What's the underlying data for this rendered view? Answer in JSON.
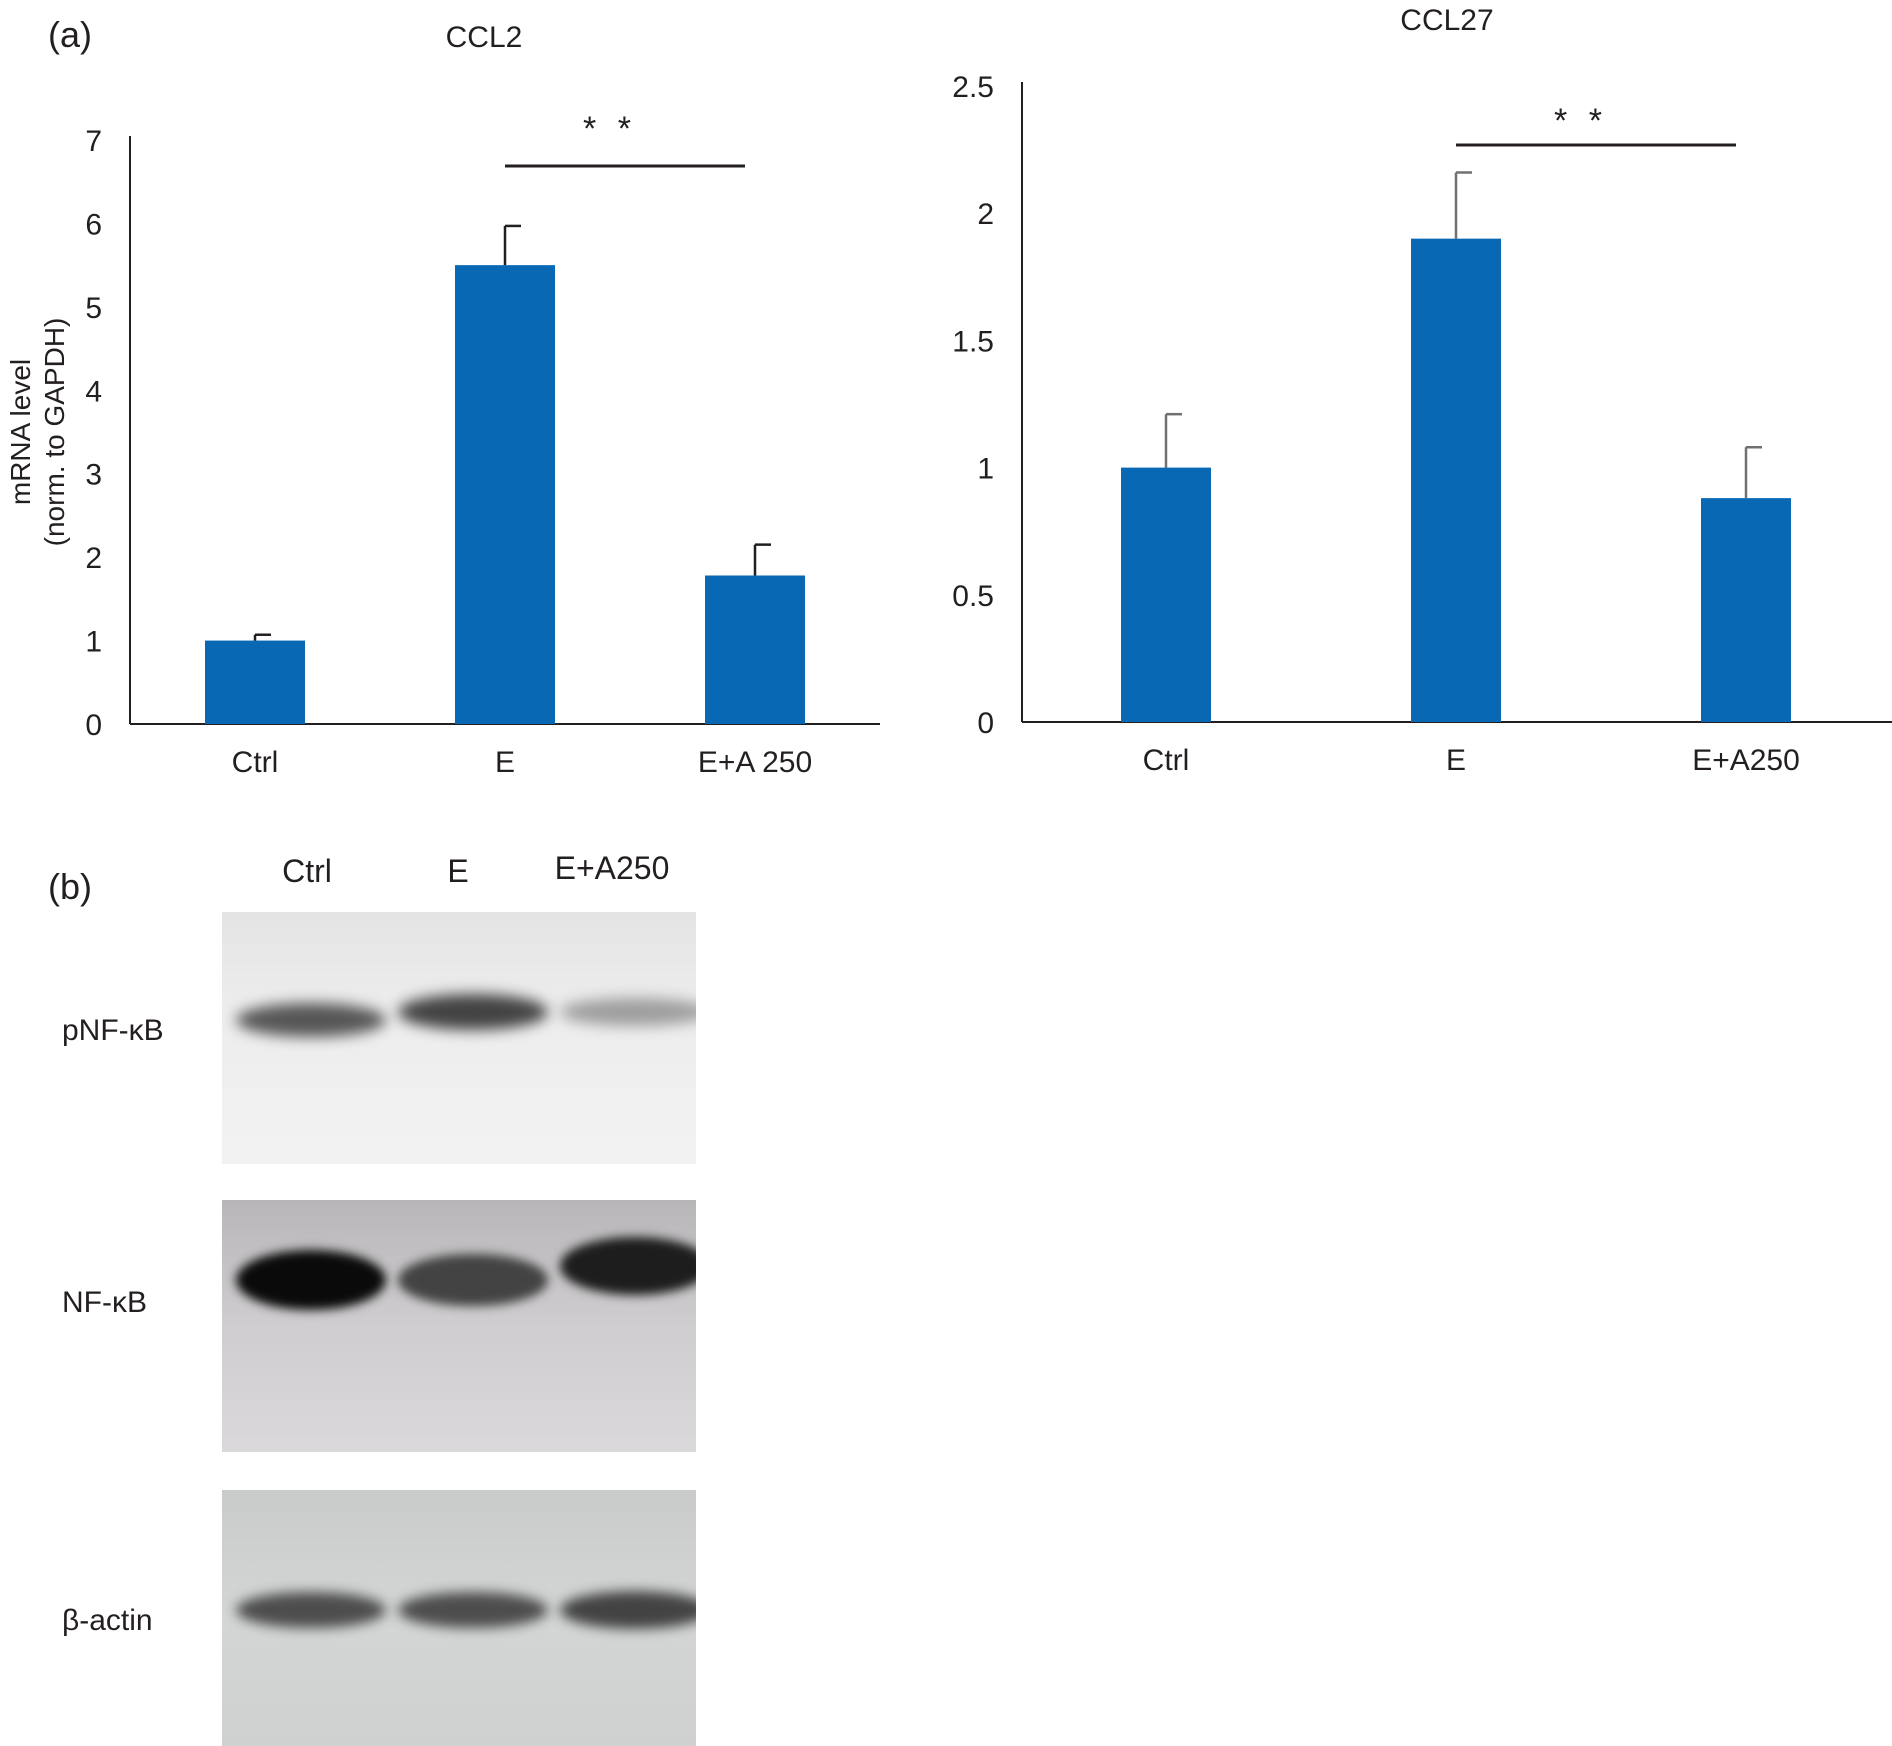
{
  "panel_labels": {
    "a": "(a)",
    "b": "(b)"
  },
  "colors": {
    "bar": "#0868b3",
    "axis": "#231f20",
    "error_ccl2": "#231f20",
    "error_ccl27": "#707070"
  },
  "chart_data": [
    {
      "type": "bar",
      "title": "CCL2",
      "categories": [
        "Ctrl",
        "E",
        "E+A 250"
      ],
      "values": [
        1.0,
        5.5,
        1.78
      ],
      "errors": [
        0.07,
        0.47,
        0.37
      ],
      "ylabel_line1": "mRNA level",
      "ylabel_line2": "(norm. to GAPDH)",
      "ylim": [
        0,
        7
      ],
      "yticks": [
        "0",
        "1",
        "2",
        "3",
        "4",
        "5",
        "6",
        "7"
      ],
      "significance": {
        "from": 1,
        "to": 2,
        "label": "* *"
      },
      "grid": false
    },
    {
      "type": "bar",
      "title": "CCL27",
      "categories": [
        "Ctrl",
        "E",
        "E+A250"
      ],
      "values": [
        1.0,
        1.9,
        0.88
      ],
      "errors": [
        0.21,
        0.26,
        0.2
      ],
      "ylabel_line1": "",
      "ylabel_line2": "",
      "ylim": [
        0,
        2.5
      ],
      "yticks": [
        "0",
        "0.5",
        "1",
        "1.5",
        "2",
        "2.5"
      ],
      "significance": {
        "from": 1,
        "to": 2,
        "label": "* *"
      },
      "grid": false
    }
  ],
  "blot": {
    "lanes": [
      "Ctrl",
      "E",
      "E+A250"
    ],
    "rows": [
      {
        "label": "pNF-κB",
        "intensities": [
          0.6,
          0.7,
          0.22
        ]
      },
      {
        "label": "NF-κB",
        "intensities": [
          1.0,
          0.7,
          0.9
        ]
      },
      {
        "label": "β-actin",
        "intensities": [
          0.65,
          0.65,
          0.7
        ]
      }
    ]
  }
}
